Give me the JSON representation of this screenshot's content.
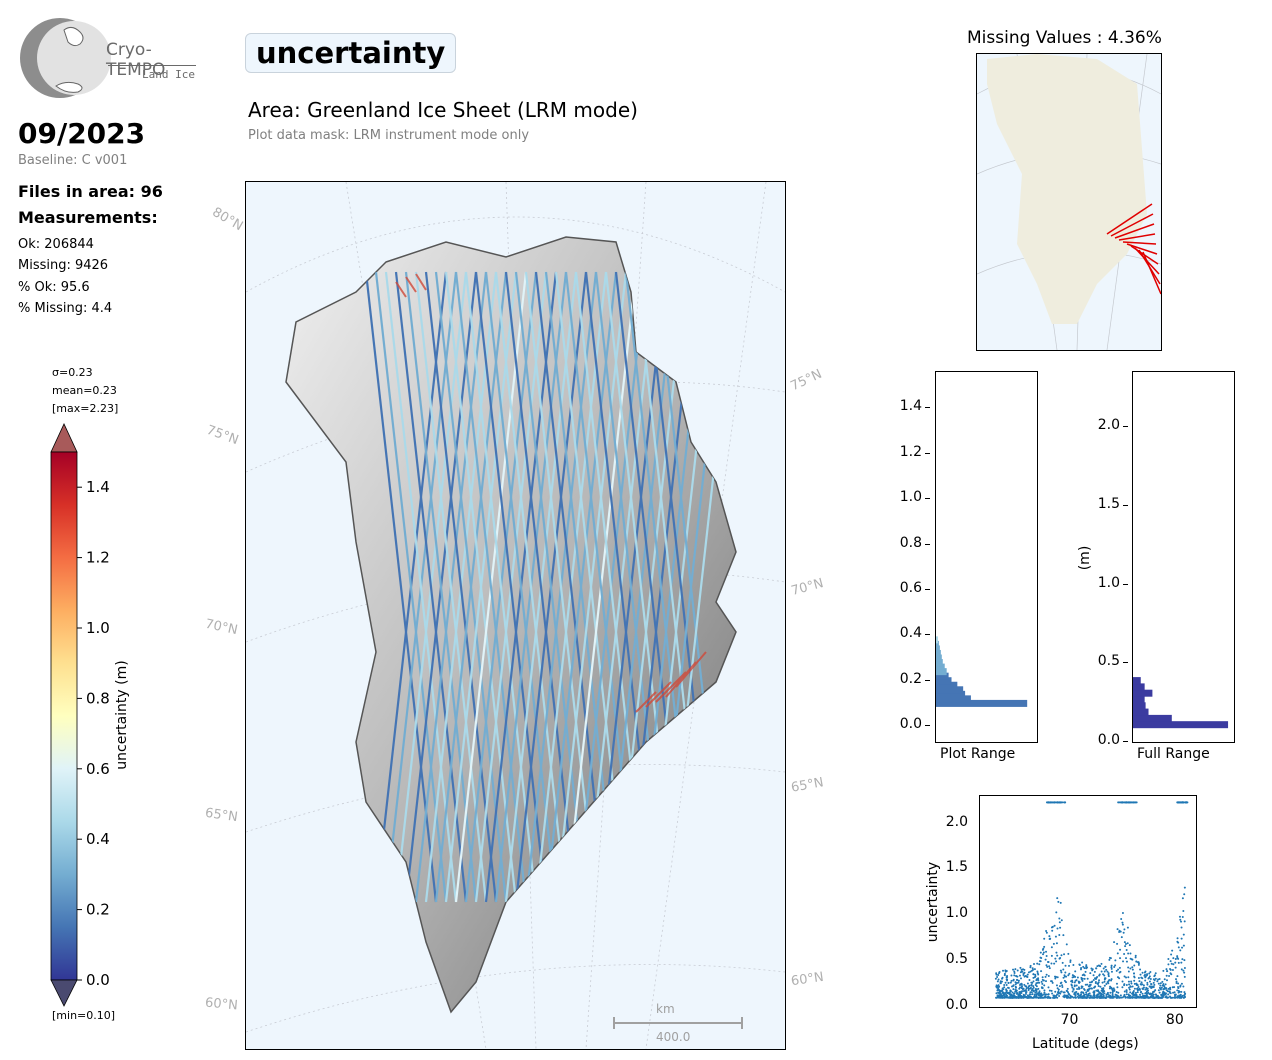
{
  "logo": {
    "name": "Cryo-TEMPO",
    "sub": "Land Ice"
  },
  "header": {
    "variable": "uncertainty",
    "area": "Area: Greenland Ice Sheet (LRM mode)",
    "mask": "Plot data mask: LRM instrument mode only"
  },
  "info": {
    "date": "09/2023",
    "baseline": "Baseline: C v001",
    "files": "Files in area: 96",
    "measurements_label": "Measurements:",
    "ok": "Ok: 206844",
    "missing": "Missing: 9426",
    "pct_ok": "% Ok: 95.6",
    "pct_missing": "% Missing: 4.4"
  },
  "colorbar": {
    "sigma": "σ=0.23",
    "mean": "mean=0.23",
    "max": "[max=2.23]",
    "min": "[min=0.10]",
    "label": "uncertainty (m)",
    "ticks": [
      "1.4",
      "1.2",
      "1.0",
      "0.8",
      "0.6",
      "0.4",
      "0.2",
      "0.0"
    ],
    "tick_values": [
      1.4,
      1.2,
      1.0,
      0.8,
      0.6,
      0.4,
      0.2,
      0.0
    ],
    "range": [
      0.0,
      1.5
    ],
    "colormap": "RdYlBu_r"
  },
  "map": {
    "lat_labels_left": [
      "80°N",
      "75°N",
      "70°N",
      "65°N",
      "60°N"
    ],
    "lat_labels_right": [
      "75°N",
      "70°N",
      "65°N",
      "60°N"
    ],
    "scalebar_unit": "km",
    "scalebar_value": "400.0",
    "background": "#eef6fd"
  },
  "missing_map": {
    "title": "Missing Values : 4.36%",
    "land_color": "#efedde",
    "missing_color": "#e00000"
  },
  "hist_plot": {
    "xlabel": "Plot Range",
    "yticks": [
      "1.4",
      "1.2",
      "1.0",
      "0.8",
      "0.6",
      "0.4",
      "0.2",
      "0.0"
    ],
    "tick_values": [
      1.4,
      1.2,
      1.0,
      0.8,
      0.6,
      0.4,
      0.2,
      0.0
    ],
    "ylim": [
      -0.07,
      1.56
    ],
    "bin_values": [
      0.1,
      0.12,
      0.14,
      0.16,
      0.18,
      0.2,
      0.22,
      0.24,
      0.26,
      0.28,
      0.3,
      0.32,
      0.34,
      0.36,
      0.38
    ],
    "bin_fractions": [
      0.94,
      0.36,
      0.3,
      0.28,
      0.22,
      0.16,
      0.13,
      0.11,
      0.09,
      0.07,
      0.06,
      0.05,
      0.04,
      0.03,
      0.02
    ]
  },
  "hist_full": {
    "xlabel": "Full Range",
    "ylabel": "(m)",
    "yticks": [
      "2.0",
      "1.5",
      "1.0",
      "0.5",
      "0.0"
    ],
    "tick_values": [
      2.0,
      1.5,
      1.0,
      0.5,
      0.0
    ],
    "ylim": [
      0.0,
      2.35
    ],
    "bin_values": [
      0.11,
      0.15,
      0.19,
      0.23,
      0.27,
      0.31,
      0.35,
      0.39
    ],
    "bin_fractions": [
      0.98,
      0.4,
      0.16,
      0.13,
      0.12,
      0.2,
      0.12,
      0.08
    ],
    "bar_color": "#3b3ba0"
  },
  "chart_data": {
    "type": "scatter",
    "xlabel": "Latitude (degs)",
    "ylabel": "uncertainty",
    "x_ticks": [
      "70",
      "80"
    ],
    "y_ticks": [
      "2.0",
      "1.5",
      "1.0",
      "0.5",
      "0.0"
    ],
    "xlim": [
      61.5,
      82.0
    ],
    "ylim": [
      0.0,
      2.3
    ],
    "color": "#1f77b4",
    "series": [
      {
        "x": [
          63,
          64,
          65,
          66,
          67,
          68,
          69,
          70,
          71,
          72,
          73,
          74,
          75,
          76,
          77,
          78,
          79,
          80,
          81
        ],
        "y": [
          0.2,
          0.22,
          0.24,
          0.25,
          0.28,
          0.6,
          0.85,
          0.3,
          0.28,
          0.26,
          0.27,
          0.35,
          0.8,
          0.4,
          0.22,
          0.2,
          0.22,
          0.45,
          0.9
        ]
      }
    ],
    "saturated_value": 2.23,
    "saturated_bands": [
      [
        67.8,
        69.6
      ],
      [
        74.6,
        76.4
      ],
      [
        80.2,
        81.2
      ]
    ]
  }
}
